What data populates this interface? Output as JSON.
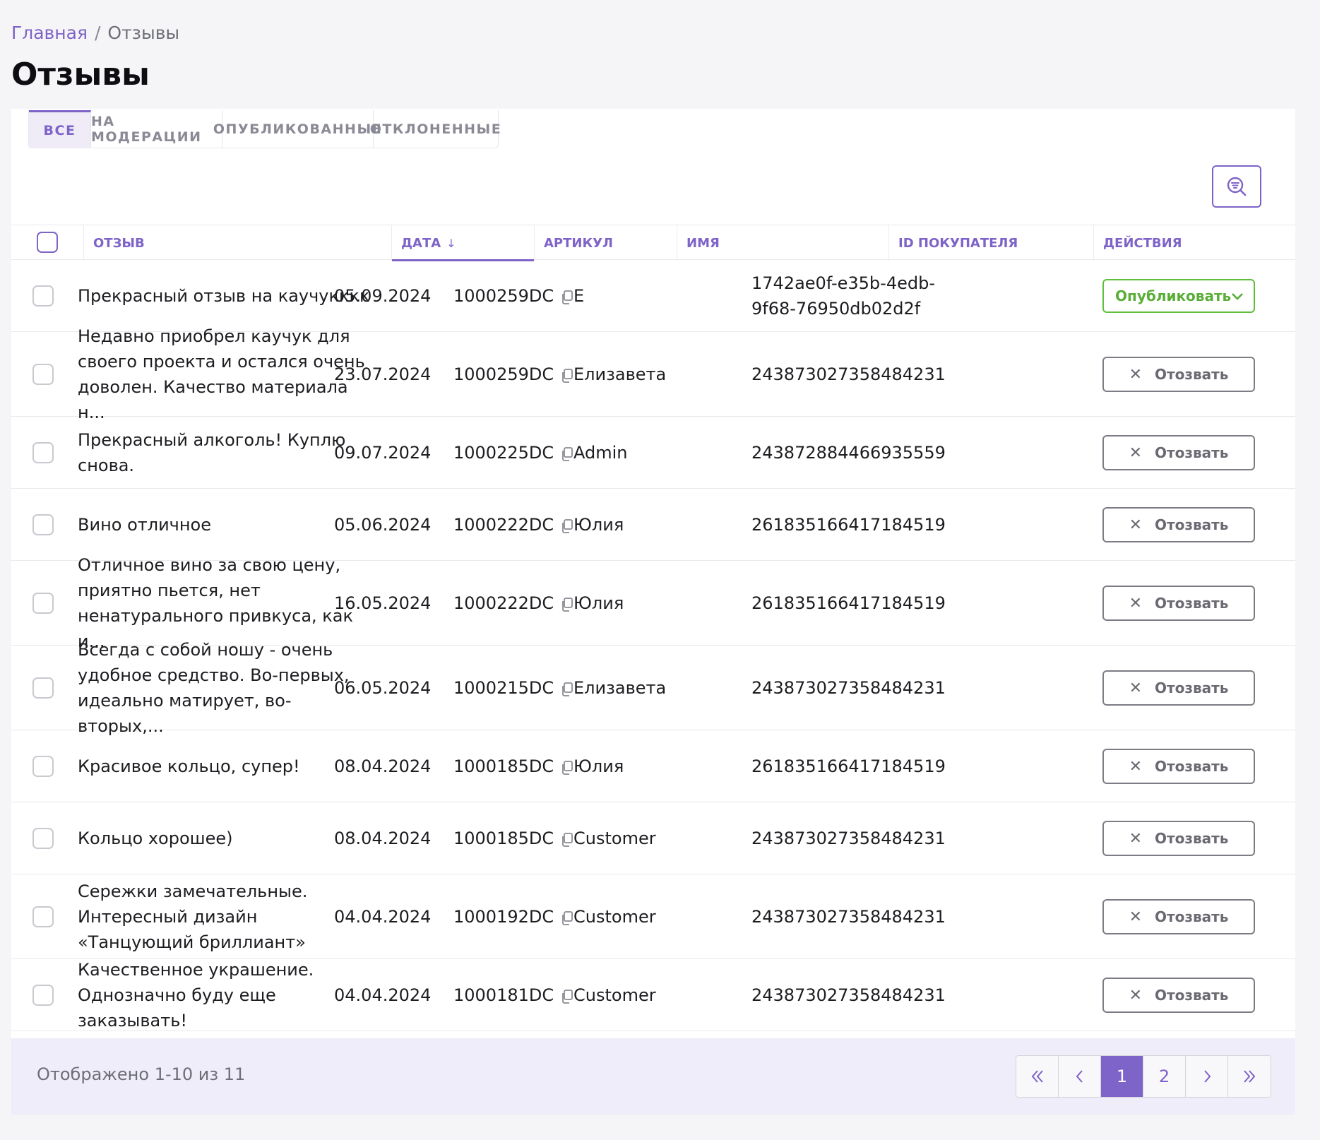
{
  "breadcrumb": {
    "home": "Главная",
    "separator": "/",
    "current": "Отзывы"
  },
  "page_title": "Отзывы",
  "tabs": [
    {
      "label": "ВСЕ",
      "active": true
    },
    {
      "label": "НА МОДЕРАЦИИ",
      "active": false
    },
    {
      "label": "ОПУБЛИКОВАННЫЕ",
      "active": false
    },
    {
      "label": "ОТКЛОНЕННЫЕ",
      "active": false
    }
  ],
  "table": {
    "headers": {
      "review": "ОТЗЫВ",
      "date": "ДАТА",
      "date_sort_arrow": "↓",
      "sku": "АРТИКУЛ",
      "name": "ИМЯ",
      "buyer_id": "ID ПОКУПАТЕЛЯ",
      "actions": "ДЕЙСТВИЯ"
    },
    "rows": [
      {
        "review": "Прекрасный отзыв на каучукккк",
        "date": "05.09.2024",
        "sku": "1000259DC",
        "name": "Е",
        "buyer_id": "1742ae0f-e35b-4edb-9f68-76950db02d2f",
        "action": "Опубликовать",
        "action_type": "publish"
      },
      {
        "review": "Недавно приобрел каучук для своего проекта и остался очень доволен. Качество материала н...",
        "date": "23.07.2024",
        "sku": "1000259DC",
        "name": "Елизавета",
        "buyer_id": "243873027358484231",
        "action": "Отозвать",
        "action_type": "revoke"
      },
      {
        "review": "Прекрасный алкоголь! Куплю снова.",
        "date": "09.07.2024",
        "sku": "1000225DC",
        "name": "Admin",
        "buyer_id": "243872884466935559",
        "action": "Отозвать",
        "action_type": "revoke"
      },
      {
        "review": "Вино отличное",
        "date": "05.06.2024",
        "sku": "1000222DC",
        "name": "Юлия",
        "buyer_id": "261835166417184519",
        "action": "Отозвать",
        "action_type": "revoke"
      },
      {
        "review": "Отличное вино за свою цену, приятно пьется, нет ненатурального привкуса, как и...",
        "date": "16.05.2024",
        "sku": "1000222DC",
        "name": "Юлия",
        "buyer_id": "261835166417184519",
        "action": "Отозвать",
        "action_type": "revoke"
      },
      {
        "review": "Всегда с собой ношу - очень удобное средство. Во-первых, идеально матирует, во-вторых,...",
        "date": "06.05.2024",
        "sku": "1000215DC",
        "name": "Елизавета",
        "buyer_id": "243873027358484231",
        "action": "Отозвать",
        "action_type": "revoke"
      },
      {
        "review": "Красивое кольцо, супер!",
        "date": "08.04.2024",
        "sku": "1000185DC",
        "name": "Юлия",
        "buyer_id": "261835166417184519",
        "action": "Отозвать",
        "action_type": "revoke"
      },
      {
        "review": "Кольцо хорошее)",
        "date": "08.04.2024",
        "sku": "1000185DC",
        "name": "Customer",
        "buyer_id": "243873027358484231",
        "action": "Отозвать",
        "action_type": "revoke"
      },
      {
        "review": "Сережки замечательные. Интересный дизайн «Танцующий бриллиант»",
        "date": "04.04.2024",
        "sku": "1000192DC",
        "name": "Customer",
        "buyer_id": "243873027358484231",
        "action": "Отозвать",
        "action_type": "revoke"
      },
      {
        "review": "Качественное украшение. Однозначно буду еще заказывать!",
        "date": "04.04.2024",
        "sku": "1000181DC",
        "name": "Customer",
        "buyer_id": "243873027358484231",
        "action": "Отозвать",
        "action_type": "revoke"
      }
    ]
  },
  "footer": {
    "shown_text": "Отображено 1-10 из 11",
    "pages": [
      "1",
      "2"
    ],
    "current_page": "1"
  },
  "colors": {
    "accent": "#7e63c8",
    "publish": "#5fbf3a",
    "footer_bg": "#efedf9"
  },
  "icons": {
    "filter": "search-filter-icon",
    "copy": "copy-icon",
    "revoke": "close-icon",
    "publish_dropdown": "chevron-down-icon",
    "first": "double-chevron-left-icon",
    "prev": "chevron-left-icon",
    "next": "chevron-right-icon",
    "last": "double-chevron-right-icon"
  }
}
